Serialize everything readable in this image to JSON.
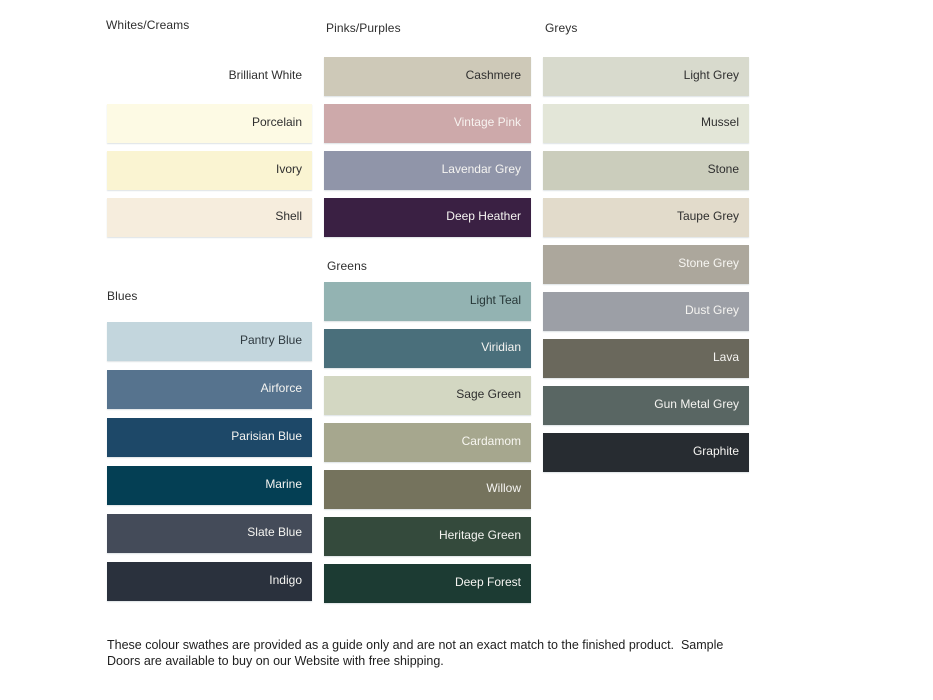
{
  "page": {
    "background": "#ffffff",
    "text_dark": "#2f2f2f",
    "text_light": "#f5f4f1"
  },
  "groups": [
    {
      "title": "Whites/Creams",
      "swatches": [
        {
          "name": "Brilliant White",
          "color": "#ffffff",
          "label_color": "#2f2f2f"
        },
        {
          "name": "Porcelain",
          "color": "#fdfae4",
          "label_color": "#2f2f2f"
        },
        {
          "name": "Ivory",
          "color": "#faf4d2",
          "label_color": "#2f2f2f"
        },
        {
          "name": "Shell",
          "color": "#f6eddd",
          "label_color": "#2f2f2f"
        }
      ]
    },
    {
      "title": "Blues",
      "swatches": [
        {
          "name": "Pantry Blue",
          "color": "#c3d6dd",
          "label_color": "#2f3a40"
        },
        {
          "name": "Airforce",
          "color": "#56738e",
          "label_color": "#f5f4f1"
        },
        {
          "name": "Parisian Blue",
          "color": "#1d4868",
          "label_color": "#f5f4f1"
        },
        {
          "name": "Marine",
          "color": "#043f54",
          "label_color": "#f5f4f1"
        },
        {
          "name": "Slate Blue",
          "color": "#444b59",
          "label_color": "#f5f4f1"
        },
        {
          "name": "Indigo",
          "color": "#2a313d",
          "label_color": "#f5f4f1"
        }
      ]
    },
    {
      "title": "Pinks/Purples",
      "swatches": [
        {
          "name": "Cashmere",
          "color": "#cec9b8",
          "label_color": "#2f2f2f"
        },
        {
          "name": "Vintage Pink",
          "color": "#cda9aa",
          "label_color": "#f7f3f0"
        },
        {
          "name": "Lavendar Grey",
          "color": "#9095a9",
          "label_color": "#f5f4f1"
        },
        {
          "name": "Deep Heather",
          "color": "#3a2043",
          "label_color": "#f5f4f1"
        }
      ]
    },
    {
      "title": "Greens",
      "swatches": [
        {
          "name": "Light Teal",
          "color": "#93b3b2",
          "label_color": "#273737"
        },
        {
          "name": "Viridian",
          "color": "#4a6f7b",
          "label_color": "#f5f4f1"
        },
        {
          "name": "Sage Green",
          "color": "#d3d7c2",
          "label_color": "#2f2f2f"
        },
        {
          "name": "Cardamom",
          "color": "#a6a78e",
          "label_color": "#f7f6f0"
        },
        {
          "name": "Willow",
          "color": "#75735d",
          "label_color": "#f5f4f1"
        },
        {
          "name": "Heritage Green",
          "color": "#344a3c",
          "label_color": "#f5f4f1"
        },
        {
          "name": "Deep Forest",
          "color": "#1c3b33",
          "label_color": "#f5f4f1"
        }
      ]
    },
    {
      "title": "Greys",
      "swatches": [
        {
          "name": "Light Grey",
          "color": "#d8dacd",
          "label_color": "#2f2f2f"
        },
        {
          "name": "Mussel",
          "color": "#e3e6d8",
          "label_color": "#2f2f2f"
        },
        {
          "name": "Stone",
          "color": "#cbcdbc",
          "label_color": "#2f2f2f"
        },
        {
          "name": "Taupe Grey",
          "color": "#e2dbcb",
          "label_color": "#2f2f2f"
        },
        {
          "name": "Stone Grey",
          "color": "#aca79c",
          "label_color": "#f7f6f2"
        },
        {
          "name": "Dust Grey",
          "color": "#9c9fa6",
          "label_color": "#f5f4f1"
        },
        {
          "name": "Lava",
          "color": "#6a685c",
          "label_color": "#f5f4f1"
        },
        {
          "name": "Gun Metal Grey",
          "color": "#596663",
          "label_color": "#f5f4f1"
        },
        {
          "name": "Graphite",
          "color": "#272c31",
          "label_color": "#f5f4f1"
        }
      ]
    }
  ],
  "footer": {
    "line1": "These colour swathes are provided as a guide only and are not an exact match to the finished product.  Sample",
    "line2": "Doors are available to buy on our Website with free shipping."
  }
}
